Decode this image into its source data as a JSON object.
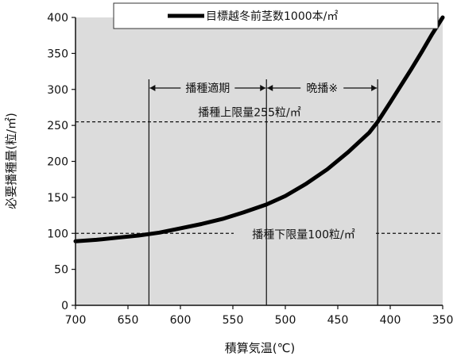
{
  "chart_data": {
    "type": "line",
    "title": "",
    "xlabel": "積算気温(℃)",
    "ylabel": "必要播種量(粒/㎡)",
    "xlim": [
      700,
      350
    ],
    "ylim": [
      0,
      400
    ],
    "x_reversed": true,
    "xticks": [
      700,
      650,
      600,
      550,
      500,
      450,
      400,
      350
    ],
    "yticks": [
      0,
      50,
      100,
      150,
      200,
      250,
      300,
      350,
      400
    ],
    "grid": false,
    "background": "#dcdcdc",
    "legend": {
      "placement": "top-right",
      "entries": [
        "目標越冬前茎数1000本/㎡"
      ]
    },
    "series": [
      {
        "name": "目標越冬前茎数1000本/㎡",
        "color": "#000000",
        "x": [
          700,
          680,
          660,
          640,
          630,
          620,
          600,
          580,
          560,
          540,
          518,
          500,
          480,
          460,
          440,
          420,
          412,
          400,
          390,
          380,
          370,
          360,
          350
        ],
        "y": [
          89,
          91,
          94,
          97,
          99,
          101,
          107,
          113,
          120,
          129,
          140,
          152,
          169,
          189,
          213,
          240,
          255,
          282,
          305,
          328,
          352,
          377,
          400
        ]
      }
    ],
    "reference_lines": [
      {
        "axis": "y",
        "value": 255,
        "style": "dashed",
        "label": "播種上限量255粒/㎡"
      },
      {
        "axis": "y",
        "value": 100,
        "style": "dashed",
        "label": "播種下限量100粒/㎡"
      }
    ],
    "vertical_lines": [
      630,
      518,
      412
    ],
    "ranges": [
      {
        "from": 630,
        "to": 518,
        "label": "播種適期"
      },
      {
        "from": 518,
        "to": 412,
        "label": "晩播※"
      }
    ]
  }
}
